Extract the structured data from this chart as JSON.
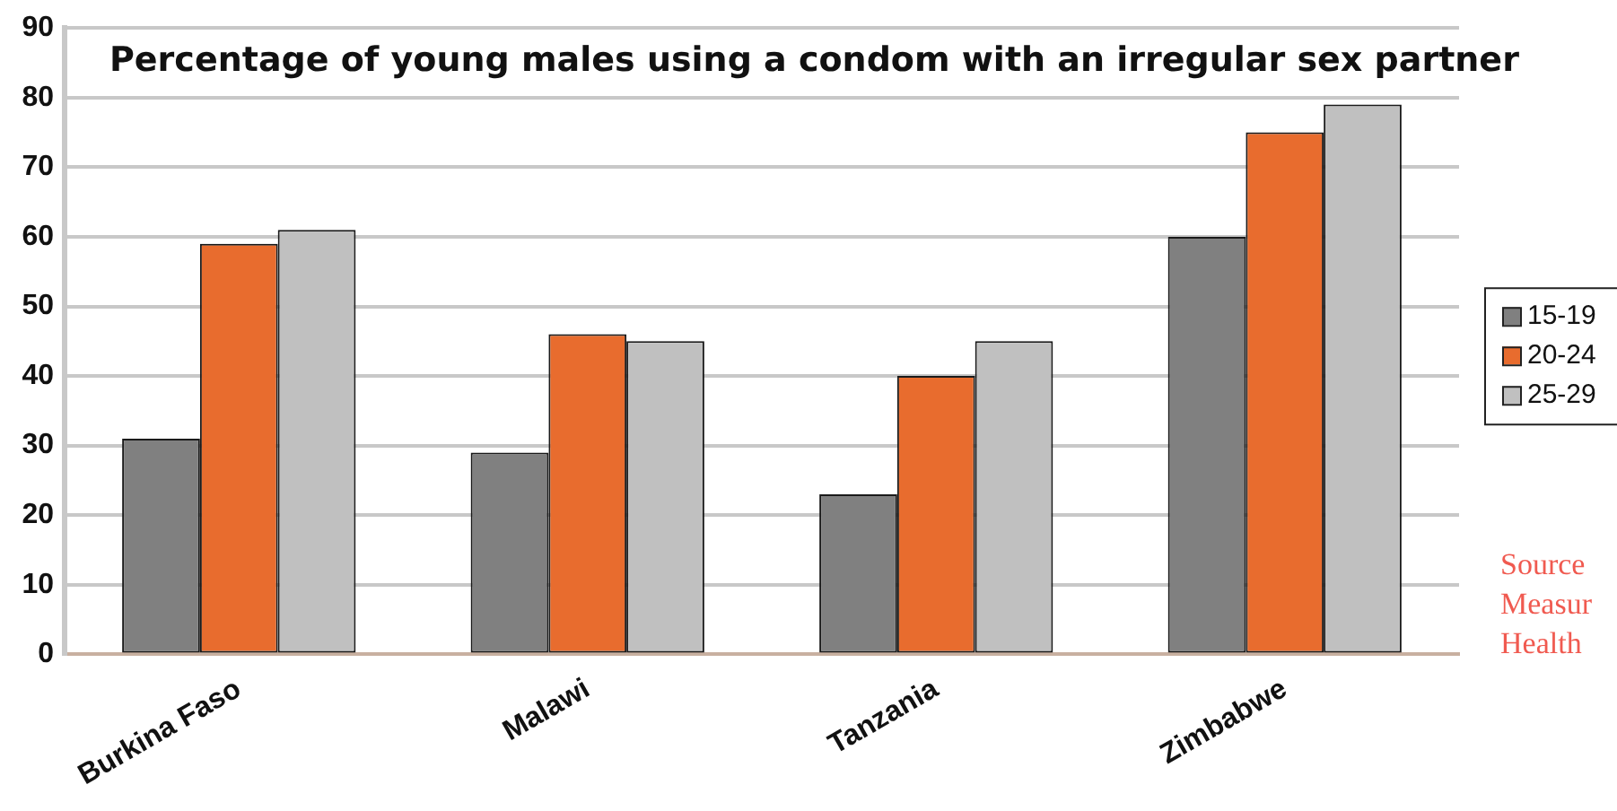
{
  "chart_data": {
    "type": "bar",
    "title": "Percentage of young males using a condom with an irregular sex partner",
    "categories": [
      "Burkina Faso",
      "Malawi",
      "Tanzania",
      "Zimbabwe"
    ],
    "series": [
      {
        "name": "15-19",
        "color": "#808080",
        "values": [
          31,
          29,
          23,
          60
        ]
      },
      {
        "name": "20-24",
        "color": "#e86c2e",
        "values": [
          59,
          46,
          40,
          75
        ]
      },
      {
        "name": "25-29",
        "color": "#c0c0c0",
        "values": [
          61,
          45,
          45,
          79
        ]
      }
    ],
    "ylim": [
      0,
      90
    ],
    "yticks": [
      0,
      10,
      20,
      30,
      40,
      50,
      60,
      70,
      80,
      90
    ],
    "grid": "y",
    "legend": "right",
    "annotations": [
      "Source",
      "Measur",
      "Health"
    ]
  }
}
